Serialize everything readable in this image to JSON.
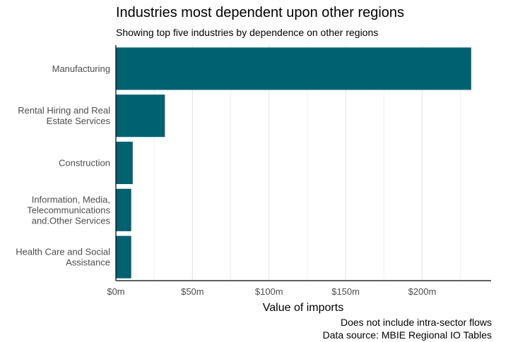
{
  "chart_data": {
    "type": "bar",
    "orientation": "horizontal",
    "title": "Industries most dependent upon other regions",
    "subtitle": "Showing top five industries by dependence on other regions",
    "categories": [
      [
        "Manufacturing"
      ],
      [
        "Rental Hiring and Real",
        "Estate Services"
      ],
      [
        "Construction"
      ],
      [
        "Information, Media,",
        "Telecommunications",
        "and.Other Services"
      ],
      [
        "Health Care and Social",
        "Assistance"
      ]
    ],
    "values": [
      232,
      32,
      11,
      10,
      10
    ],
    "xlabel": "Value of imports",
    "ylabel": "",
    "xlim": [
      0,
      245
    ],
    "x_ticks": [
      0,
      50,
      100,
      150,
      200
    ],
    "x_tick_labels": [
      "$0m",
      "$50m",
      "$100m",
      "$150m",
      "$200m"
    ],
    "grid": true,
    "bar_color": "#006170",
    "captions": [
      "Does not include intra-sector flows",
      "Data source: MBIE Regional IO Tables"
    ]
  }
}
